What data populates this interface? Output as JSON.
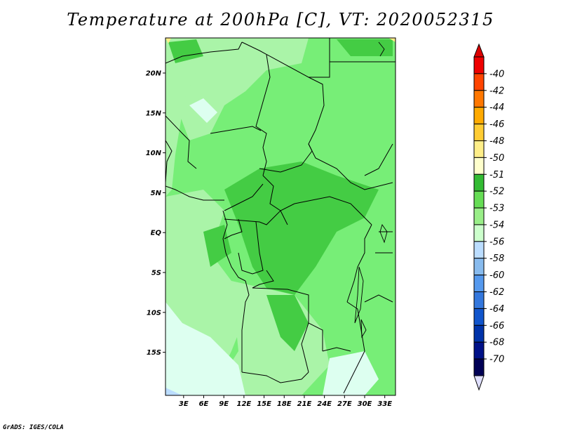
{
  "title": "Temperature at 200hPa [C], VT: 2020052315",
  "footer": "GrADS: IGES/COLA",
  "map": {
    "lat_labels": [
      "20N",
      "15N",
      "10N",
      "5N",
      "EQ",
      "5S",
      "10S",
      "15S"
    ],
    "lon_labels": [
      "3E",
      "6E",
      "9E",
      "12E",
      "15E",
      "18E",
      "21E",
      "24E",
      "27E",
      "30E",
      "33E"
    ],
    "lat_values": [
      20,
      15,
      10,
      5,
      0,
      -5,
      -10,
      -15
    ],
    "lon_values": [
      3,
      6,
      9,
      12,
      15,
      18,
      21,
      24,
      27,
      30,
      33
    ]
  },
  "colorbar": {
    "labels": [
      "-40",
      "-42",
      "-44",
      "-46",
      "-48",
      "-50",
      "-51",
      "-52",
      "-53",
      "-54",
      "-56",
      "-58",
      "-60",
      "-62",
      "-64",
      "-66",
      "-68",
      "-70"
    ],
    "colors": [
      "#ee0000",
      "#ff4400",
      "#ff7700",
      "#ffaa00",
      "#ffcc33",
      "#ffee88",
      "#ffffcc",
      "#33bb33",
      "#66dd55",
      "#99ee88",
      "#ccffcc",
      "#bbddff",
      "#88bbee",
      "#5599ee",
      "#3377dd",
      "#1155cc",
      "#0033aa",
      "#001188",
      "#000055"
    ],
    "top_arrow_color": "#dd0000",
    "bottom_arrow_color": "#e0e0ff"
  }
}
